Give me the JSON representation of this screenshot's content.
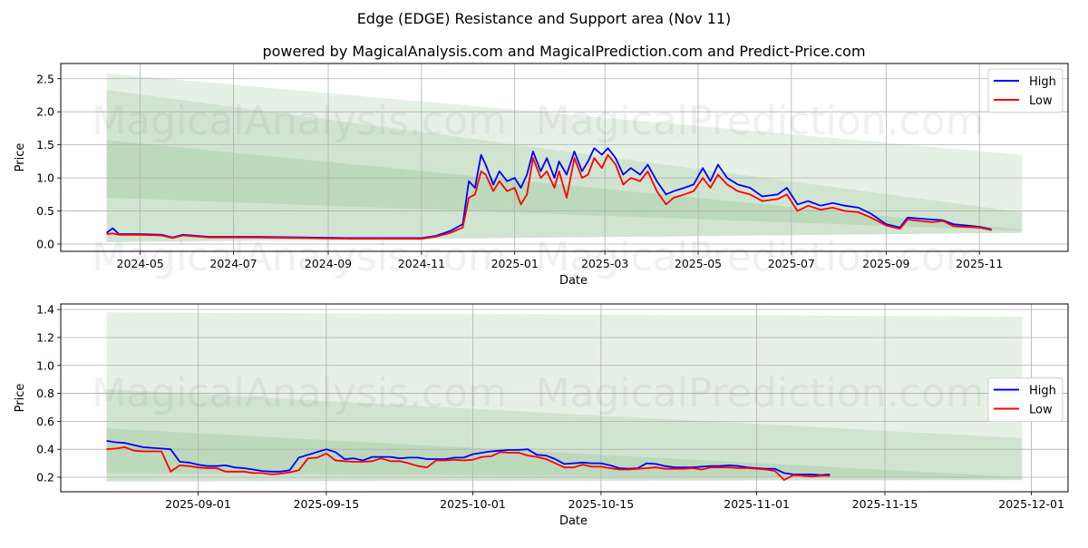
{
  "title": "Edge (EDGE) Resistance and Support area (Nov 11)",
  "subtitle": "powered by MagicalAnalysis.com and MagicalPrediction.com and Predict-Price.com",
  "watermarks": [
    "MagicalAnalysis.com",
    "MagicalPrediction.com"
  ],
  "colors": {
    "high": "#0000ff",
    "low": "#ff0000",
    "band": "#2e8b2e"
  },
  "chart_data": [
    {
      "type": "line",
      "xlabel": "Date",
      "ylabel": "Price",
      "xlim": [
        "2024-03-10",
        "2025-12-29"
      ],
      "ylim": [
        -0.11,
        2.73
      ],
      "grid": true,
      "legend": {
        "placement": "top-right",
        "entries": [
          "High",
          "Low"
        ]
      },
      "xticks": [
        {
          "date": "2024-05-01",
          "label": "2024-05"
        },
        {
          "date": "2024-07-01",
          "label": "2024-07"
        },
        {
          "date": "2024-09-01",
          "label": "2024-09"
        },
        {
          "date": "2024-11-01",
          "label": "2024-11"
        },
        {
          "date": "2025-01-01",
          "label": "2025-01"
        },
        {
          "date": "2025-03-01",
          "label": "2025-03"
        },
        {
          "date": "2025-05-01",
          "label": "2025-05"
        },
        {
          "date": "2025-07-01",
          "label": "2025-07"
        },
        {
          "date": "2025-09-01",
          "label": "2025-09"
        },
        {
          "date": "2025-11-01",
          "label": "2025-11"
        }
      ],
      "yticks": [
        0.0,
        0.5,
        1.0,
        1.5,
        2.0,
        2.5
      ],
      "bands": [
        {
          "x": [
            "2024-04-09",
            "2025-11-29"
          ],
          "top": [
            2.58,
            1.35
          ],
          "bottom": [
            0.03,
            0.17
          ]
        },
        {
          "x": [
            "2024-04-09",
            "2025-11-29"
          ],
          "top": [
            2.33,
            0.48
          ],
          "bottom": [
            0.03,
            0.17
          ]
        },
        {
          "x": [
            "2024-04-09",
            "2025-11-29"
          ],
          "top": [
            1.57,
            0.22
          ],
          "bottom": [
            0.7,
            0.2
          ]
        }
      ],
      "x": [
        "2024-04-09",
        "2024-04-13",
        "2024-04-17",
        "2024-05-01",
        "2024-05-15",
        "2024-05-22",
        "2024-05-29",
        "2024-06-15",
        "2024-07-15",
        "2024-08-15",
        "2024-09-15",
        "2024-10-15",
        "2024-11-01",
        "2024-11-10",
        "2024-11-20",
        "2024-11-28",
        "2024-12-02",
        "2024-12-06",
        "2024-12-10",
        "2024-12-13",
        "2024-12-18",
        "2024-12-22",
        "2024-12-27",
        "2025-01-01",
        "2025-01-05",
        "2025-01-09",
        "2025-01-13",
        "2025-01-18",
        "2025-01-22",
        "2025-01-27",
        "2025-01-30",
        "2025-02-04",
        "2025-02-09",
        "2025-02-14",
        "2025-02-18",
        "2025-02-22",
        "2025-02-27",
        "2025-03-03",
        "2025-03-08",
        "2025-03-13",
        "2025-03-18",
        "2025-03-24",
        "2025-03-29",
        "2025-04-04",
        "2025-04-10",
        "2025-04-15",
        "2025-04-22",
        "2025-04-28",
        "2025-05-04",
        "2025-05-09",
        "2025-05-14",
        "2025-05-20",
        "2025-05-27",
        "2025-06-04",
        "2025-06-12",
        "2025-06-22",
        "2025-06-28",
        "2025-07-05",
        "2025-07-12",
        "2025-07-20",
        "2025-07-28",
        "2025-08-05",
        "2025-08-14",
        "2025-08-22",
        "2025-09-01",
        "2025-09-10",
        "2025-09-15",
        "2025-10-01",
        "2025-10-08",
        "2025-10-15",
        "2025-11-01",
        "2025-11-09"
      ],
      "series": [
        {
          "name": "High",
          "values": [
            0.17,
            0.24,
            0.15,
            0.15,
            0.14,
            0.1,
            0.14,
            0.11,
            0.11,
            0.1,
            0.09,
            0.09,
            0.09,
            0.12,
            0.2,
            0.3,
            0.95,
            0.85,
            1.35,
            1.2,
            0.9,
            1.1,
            0.95,
            1.0,
            0.85,
            1.05,
            1.4,
            1.1,
            1.3,
            1.0,
            1.25,
            1.05,
            1.4,
            1.1,
            1.25,
            1.45,
            1.35,
            1.45,
            1.3,
            1.05,
            1.15,
            1.05,
            1.2,
            0.95,
            0.75,
            0.8,
            0.85,
            0.9,
            1.15,
            0.95,
            1.2,
            1.0,
            0.9,
            0.85,
            0.72,
            0.75,
            0.85,
            0.6,
            0.65,
            0.58,
            0.62,
            0.58,
            0.55,
            0.46,
            0.3,
            0.25,
            0.4,
            0.37,
            0.36,
            0.3,
            0.26,
            0.22
          ]
        },
        {
          "name": "Low",
          "values": [
            0.15,
            0.16,
            0.14,
            0.14,
            0.13,
            0.09,
            0.13,
            0.1,
            0.1,
            0.09,
            0.08,
            0.08,
            0.08,
            0.11,
            0.17,
            0.25,
            0.7,
            0.75,
            1.1,
            1.05,
            0.8,
            0.95,
            0.8,
            0.85,
            0.6,
            0.75,
            1.3,
            1.0,
            1.1,
            0.85,
            1.1,
            0.7,
            1.3,
            1.0,
            1.05,
            1.3,
            1.15,
            1.35,
            1.2,
            0.9,
            1.0,
            0.95,
            1.1,
            0.8,
            0.6,
            0.7,
            0.75,
            0.8,
            1.0,
            0.85,
            1.05,
            0.9,
            0.8,
            0.75,
            0.65,
            0.68,
            0.75,
            0.5,
            0.58,
            0.52,
            0.55,
            0.5,
            0.48,
            0.4,
            0.28,
            0.23,
            0.37,
            0.33,
            0.35,
            0.27,
            0.25,
            0.21
          ]
        }
      ]
    },
    {
      "type": "line",
      "xlabel": "Date",
      "ylabel": "Price",
      "xlim": [
        "2025-08-17",
        "2025-12-05"
      ],
      "ylim": [
        0.096,
        1.44
      ],
      "grid": true,
      "legend": {
        "placement": "center-right",
        "entries": [
          "High",
          "Low"
        ]
      },
      "xticks": [
        {
          "date": "2025-09-01",
          "label": "2025-09-01"
        },
        {
          "date": "2025-09-15",
          "label": "2025-09-15"
        },
        {
          "date": "2025-10-01",
          "label": "2025-10-01"
        },
        {
          "date": "2025-10-15",
          "label": "2025-10-15"
        },
        {
          "date": "2025-11-01",
          "label": "2025-11-01"
        },
        {
          "date": "2025-11-15",
          "label": "2025-11-15"
        },
        {
          "date": "2025-12-01",
          "label": "2025-12-01"
        }
      ],
      "yticks": [
        0.2,
        0.4,
        0.6,
        0.8,
        1.0,
        1.2,
        1.4
      ],
      "bands": [
        {
          "x": [
            "2025-08-22",
            "2025-11-30"
          ],
          "top": [
            1.38,
            1.35
          ],
          "bottom": [
            0.17,
            0.18
          ]
        },
        {
          "x": [
            "2025-08-22",
            "2025-11-30"
          ],
          "top": [
            0.83,
            0.48
          ],
          "bottom": [
            0.17,
            0.18
          ]
        },
        {
          "x": [
            "2025-08-22",
            "2025-11-30"
          ],
          "top": [
            0.55,
            0.2
          ],
          "bottom": [
            0.23,
            0.19
          ]
        }
      ],
      "x_start": "2025-08-22",
      "x_step_days": 1,
      "series": [
        {
          "name": "High",
          "values": [
            0.46,
            0.45,
            0.445,
            0.43,
            0.415,
            0.41,
            0.405,
            0.4,
            0.31,
            0.305,
            0.29,
            0.28,
            0.28,
            0.285,
            0.27,
            0.265,
            0.255,
            0.245,
            0.24,
            0.24,
            0.25,
            0.34,
            0.36,
            0.38,
            0.4,
            0.38,
            0.33,
            0.335,
            0.32,
            0.345,
            0.345,
            0.345,
            0.335,
            0.34,
            0.34,
            0.33,
            0.33,
            0.33,
            0.34,
            0.34,
            0.365,
            0.375,
            0.385,
            0.39,
            0.395,
            0.395,
            0.4,
            0.36,
            0.355,
            0.33,
            0.295,
            0.3,
            0.305,
            0.3,
            0.3,
            0.285,
            0.265,
            0.26,
            0.265,
            0.3,
            0.295,
            0.28,
            0.27,
            0.27,
            0.27,
            0.275,
            0.28,
            0.28,
            0.285,
            0.28,
            0.27,
            0.265,
            0.26,
            0.26,
            0.23,
            0.22,
            0.22,
            0.22,
            0.215,
            0.22
          ]
        },
        {
          "name": "Low",
          "values": [
            0.4,
            0.405,
            0.415,
            0.39,
            0.385,
            0.385,
            0.385,
            0.24,
            0.285,
            0.28,
            0.27,
            0.265,
            0.265,
            0.24,
            0.24,
            0.24,
            0.23,
            0.23,
            0.22,
            0.225,
            0.235,
            0.25,
            0.335,
            0.34,
            0.37,
            0.32,
            0.315,
            0.31,
            0.31,
            0.315,
            0.335,
            0.315,
            0.315,
            0.3,
            0.28,
            0.27,
            0.32,
            0.32,
            0.325,
            0.32,
            0.325,
            0.345,
            0.35,
            0.38,
            0.375,
            0.375,
            0.355,
            0.345,
            0.33,
            0.3,
            0.27,
            0.27,
            0.29,
            0.275,
            0.275,
            0.265,
            0.255,
            0.255,
            0.26,
            0.265,
            0.27,
            0.26,
            0.26,
            0.26,
            0.265,
            0.255,
            0.27,
            0.27,
            0.27,
            0.265,
            0.265,
            0.26,
            0.255,
            0.245,
            0.18,
            0.215,
            0.21,
            0.205,
            0.21,
            0.21
          ]
        }
      ]
    }
  ]
}
